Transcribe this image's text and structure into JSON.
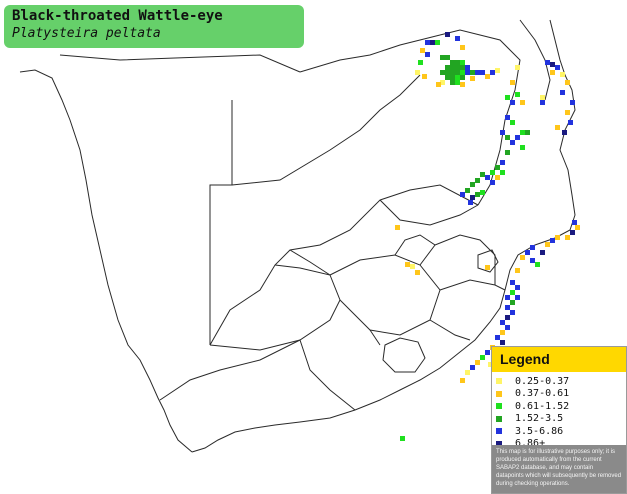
{
  "title": {
    "common_name": "Black-throated Wattle-eye",
    "scientific_name": "Platysteira peltata"
  },
  "legend": {
    "heading": "Legend",
    "items": [
      {
        "label": "0.25-0.37",
        "color": "#fff566"
      },
      {
        "label": "0.37-0.61",
        "color": "#ffc61a"
      },
      {
        "label": "0.61-1.52",
        "color": "#1fe01f"
      },
      {
        "label": "1.52-3.5",
        "color": "#22a522"
      },
      {
        "label": "3.5-6.86",
        "color": "#2233dd"
      },
      {
        "label": "6.86+",
        "color": "#1a1a80"
      }
    ],
    "note": "This map is for illustrative purposes only; it is produced automatically from the current SABAP2 database, and may contain datapoints which will subsequently be removed during checking operations."
  },
  "map": {
    "background_color": "#ffffff",
    "border_color": "#222222"
  }
}
